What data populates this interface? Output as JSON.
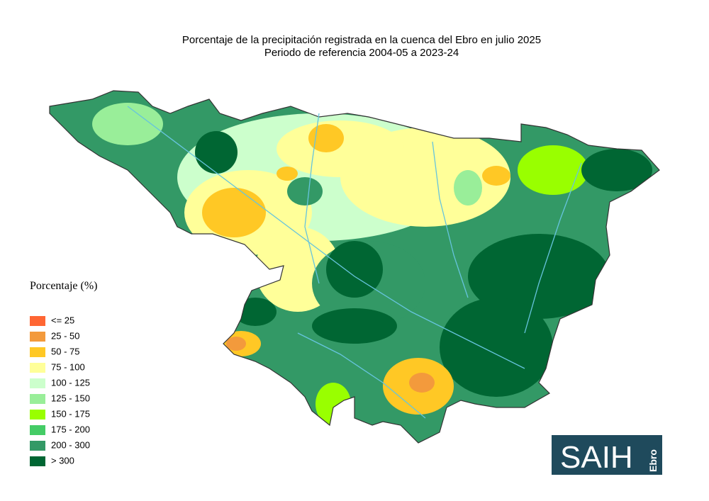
{
  "title": "Porcentaje de la precipitación registrada en la cuenca del Ebro en julio 2025",
  "subtitle": "Periodo de referencia 2004-05 a 2023-24",
  "legend": {
    "title": "Porcentaje (%)",
    "items": [
      {
        "label": "<= 25",
        "color": "#ff6633"
      },
      {
        "label": "25 - 50",
        "color": "#f39a3c"
      },
      {
        "label": "50 - 75",
        "color": "#ffc825"
      },
      {
        "label": "75 - 100",
        "color": "#ffff99"
      },
      {
        "label": "100 - 125",
        "color": "#ccffcc"
      },
      {
        "label": "125 - 150",
        "color": "#99ee99"
      },
      {
        "label": "150 - 175",
        "color": "#99ff00"
      },
      {
        "label": "175 - 200",
        "color": "#44cc66"
      },
      {
        "label": "200 - 300",
        "color": "#339966"
      },
      {
        "label": "> 300",
        "color": "#006633"
      }
    ]
  },
  "logo": {
    "text": "SAIH",
    "subtext": "Ebro"
  }
}
